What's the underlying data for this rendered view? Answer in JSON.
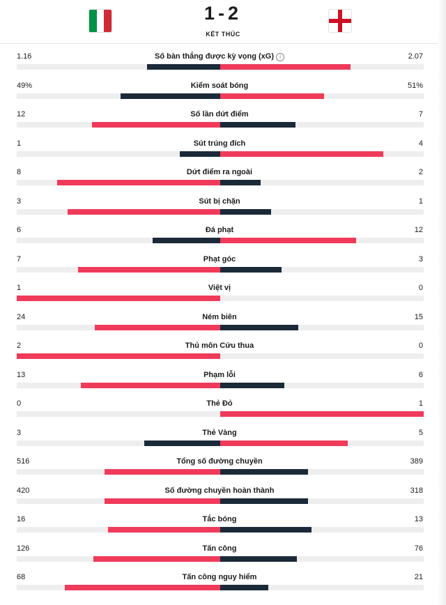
{
  "match": {
    "score_home": "1",
    "score_separator": "-",
    "score_away": "2",
    "status": "KẾT THÚC",
    "home_flag_colors": [
      "#009246",
      "#ffffff",
      "#ce2b37"
    ],
    "away_flag_colors": [
      "#ffffff",
      "#ce1124"
    ]
  },
  "bar_colors": {
    "leading": "#f03a5a",
    "trailing": "#1b2a38",
    "track": "#eeeeee"
  },
  "stats": [
    {
      "label": "Số bàn thắng được kỳ vọng (xG)",
      "home": "1.16",
      "away": "2.07",
      "home_value": 1.16,
      "away_value": 2.07,
      "info_icon": true
    },
    {
      "label": "Kiểm soát bóng",
      "home": "49%",
      "away": "51%",
      "home_value": 49,
      "away_value": 51
    },
    {
      "label": "Số lần dứt điểm",
      "home": "12",
      "away": "7",
      "home_value": 12,
      "away_value": 7
    },
    {
      "label": "Sút trúng đích",
      "home": "1",
      "away": "4",
      "home_value": 1,
      "away_value": 4
    },
    {
      "label": "Dứt điểm ra ngoài",
      "home": "8",
      "away": "2",
      "home_value": 8,
      "away_value": 2
    },
    {
      "label": "Sút bị chặn",
      "home": "3",
      "away": "1",
      "home_value": 3,
      "away_value": 1
    },
    {
      "label": "Đá phạt",
      "home": "6",
      "away": "12",
      "home_value": 6,
      "away_value": 12
    },
    {
      "label": "Phạt góc",
      "home": "7",
      "away": "3",
      "home_value": 7,
      "away_value": 3
    },
    {
      "label": "Việt vị",
      "home": "1",
      "away": "0",
      "home_value": 1,
      "away_value": 0
    },
    {
      "label": "Ném biên",
      "home": "24",
      "away": "15",
      "home_value": 24,
      "away_value": 15
    },
    {
      "label": "Thủ môn Cứu thua",
      "home": "2",
      "away": "0",
      "home_value": 2,
      "away_value": 0
    },
    {
      "label": "Phạm lỗi",
      "home": "13",
      "away": "6",
      "home_value": 13,
      "away_value": 6
    },
    {
      "label": "Thẻ Đỏ",
      "home": "0",
      "away": "1",
      "home_value": 0,
      "away_value": 1
    },
    {
      "label": "Thẻ Vàng",
      "home": "3",
      "away": "5",
      "home_value": 3,
      "away_value": 5
    },
    {
      "label": "Tổng số đường chuyền",
      "home": "516",
      "away": "389",
      "home_value": 516,
      "away_value": 389
    },
    {
      "label": "Số đường chuyền hoàn thành",
      "home": "420",
      "away": "318",
      "home_value": 420,
      "away_value": 318
    },
    {
      "label": "Tắc bóng",
      "home": "16",
      "away": "13",
      "home_value": 16,
      "away_value": 13
    },
    {
      "label": "Tấn công",
      "home": "126",
      "away": "76",
      "home_value": 126,
      "away_value": 76
    },
    {
      "label": "Tấn công nguy hiểm",
      "home": "68",
      "away": "21",
      "home_value": 68,
      "away_value": 21
    }
  ]
}
